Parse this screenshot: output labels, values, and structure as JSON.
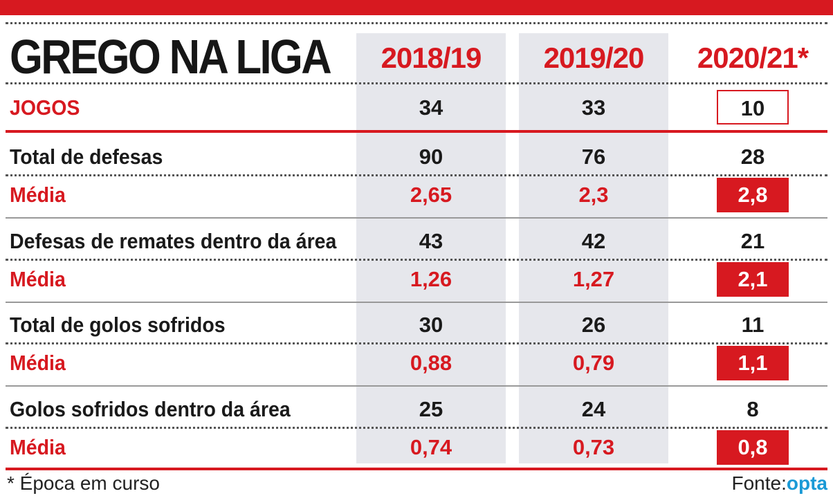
{
  "title": "GREGO NA LIGA",
  "columns": [
    "2018/19",
    "2019/20",
    "2020/21*"
  ],
  "jogos": {
    "label": "JOGOS",
    "values": [
      "34",
      "33",
      "10"
    ]
  },
  "groups": [
    {
      "label": "Total de defesas",
      "values": [
        "90",
        "76",
        "28"
      ],
      "avg_label": "Média",
      "avg": [
        "2,65",
        "2,3",
        "2,8"
      ]
    },
    {
      "label": "Defesas de remates dentro da área",
      "values": [
        "43",
        "42",
        "21"
      ],
      "avg_label": "Média",
      "avg": [
        "1,26",
        "1,27",
        "2,1"
      ]
    },
    {
      "label": "Total de golos sofridos",
      "values": [
        "30",
        "26",
        "11"
      ],
      "avg_label": "Média",
      "avg": [
        "0,88",
        "0,79",
        "1,1"
      ]
    },
    {
      "label": "Golos sofridos dentro da área",
      "values": [
        "25",
        "24",
        "8"
      ],
      "avg_label": "Média",
      "avg": [
        "0,74",
        "0,73",
        "0,8"
      ]
    }
  ],
  "footnote": "* Época em curso",
  "source_label": "Fonte:",
  "source_name": "opta",
  "colors": {
    "accent": "#d71920",
    "column_bg": "#e6e7ec",
    "opta": "#1a9ad6"
  }
}
